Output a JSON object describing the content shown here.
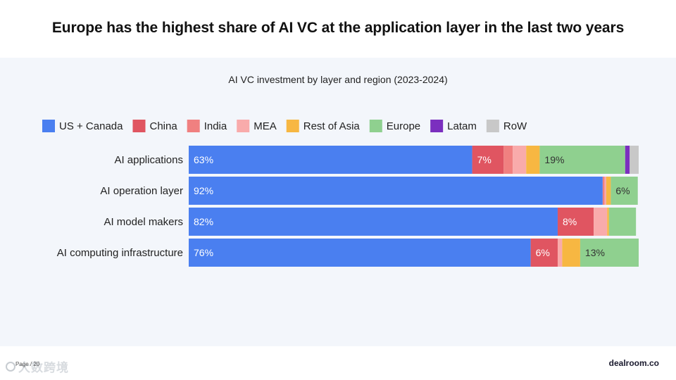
{
  "headline": "Europe has the highest share of AI VC at the application layer in the last two years",
  "footer": {
    "brand": "dealroom.co",
    "page": "Page / 20",
    "watermark": "大数跨境"
  },
  "colors": {
    "panel_bg": "#f3f6fb",
    "label_light": "#ffffff",
    "label_dark": "#333333"
  },
  "chart_data": {
    "type": "bar",
    "orientation": "horizontal",
    "stacked": true,
    "normalized": true,
    "title": "AI VC investment by layer and region (2023-2024)",
    "legend_position": "top",
    "categories": [
      "AI applications",
      "AI operation layer",
      "AI model makers",
      "AI computing infrastructure"
    ],
    "xlim": [
      0,
      100
    ],
    "unit": "%",
    "series": [
      {
        "name": "US + Canada",
        "color": "#4a7ff0",
        "values": [
          63,
          92,
          82,
          76
        ],
        "labels": [
          "63%",
          "92%",
          "82%",
          "76%"
        ],
        "label_color": "#ffffff"
      },
      {
        "name": "China",
        "color": "#e05561",
        "values": [
          7,
          0,
          8,
          6
        ],
        "labels": [
          "7%",
          "",
          "8%",
          "6%"
        ],
        "label_color": "#ffffff"
      },
      {
        "name": "India",
        "color": "#f08080",
        "values": [
          2,
          0.4,
          0,
          0
        ],
        "labels": [
          "",
          "",
          "",
          ""
        ],
        "label_color": "#ffffff"
      },
      {
        "name": "MEA",
        "color": "#f9abab",
        "values": [
          3,
          0.4,
          3,
          1
        ],
        "labels": [
          "",
          "",
          "",
          ""
        ],
        "label_color": "#ffffff"
      },
      {
        "name": "Rest of Asia",
        "color": "#f7b742",
        "values": [
          3,
          1,
          0.4,
          4
        ],
        "labels": [
          "",
          "",
          "",
          ""
        ],
        "label_color": "#333333"
      },
      {
        "name": "Europe",
        "color": "#8fd08f",
        "values": [
          19,
          6,
          6,
          13
        ],
        "labels": [
          "19%",
          "6%",
          "",
          "13%"
        ],
        "label_color": "#333333"
      },
      {
        "name": "Latam",
        "color": "#7b2fbf",
        "values": [
          1,
          0,
          0,
          0
        ],
        "labels": [
          "",
          "",
          "",
          ""
        ],
        "label_color": "#ffffff"
      },
      {
        "name": "RoW",
        "color": "#c8c8c8",
        "values": [
          2,
          0,
          0,
          0
        ],
        "labels": [
          "",
          "",
          "",
          ""
        ],
        "label_color": "#333333"
      }
    ]
  }
}
